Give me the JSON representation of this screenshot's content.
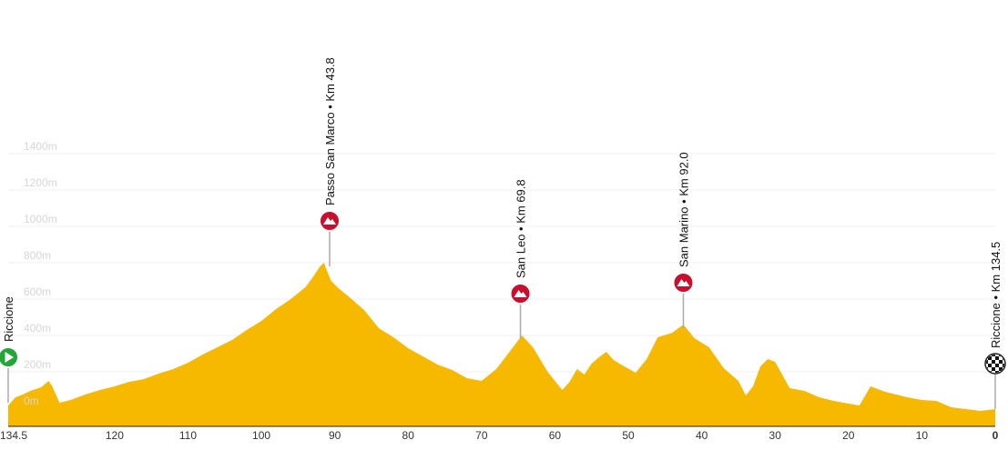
{
  "chart_data": {
    "type": "area",
    "x_reversed": true,
    "xlim": [
      134.5,
      0
    ],
    "ylim": [
      -150,
      1400
    ],
    "grid": true,
    "colors": {
      "fill": "#f6b900",
      "marker_climb": "#c8102e",
      "marker_start": "#23a638",
      "grid": "#efefef",
      "stem": "#aaaaaa"
    },
    "y_ticks": [
      {
        "value": 0,
        "label": "0m"
      },
      {
        "value": 200,
        "label": "200m"
      },
      {
        "value": 400,
        "label": "400m"
      },
      {
        "value": 600,
        "label": "600m"
      },
      {
        "value": 800,
        "label": "800m"
      },
      {
        "value": 1000,
        "label": "1000m"
      },
      {
        "value": 1200,
        "label": "1200m"
      },
      {
        "value": 1400,
        "label": "1400m"
      }
    ],
    "x_ticks": [
      {
        "value": 134.5,
        "label": "134.5",
        "bold": false
      },
      {
        "value": 120,
        "label": "120",
        "bold": false
      },
      {
        "value": 110,
        "label": "110",
        "bold": false
      },
      {
        "value": 100,
        "label": "100",
        "bold": false
      },
      {
        "value": 90,
        "label": "90",
        "bold": false
      },
      {
        "value": 80,
        "label": "80",
        "bold": false
      },
      {
        "value": 70,
        "label": "70",
        "bold": false
      },
      {
        "value": 60,
        "label": "60",
        "bold": false
      },
      {
        "value": 50,
        "label": "50",
        "bold": false
      },
      {
        "value": 40,
        "label": "40",
        "bold": false
      },
      {
        "value": 30,
        "label": "30",
        "bold": false
      },
      {
        "value": 20,
        "label": "20",
        "bold": false
      },
      {
        "value": 10,
        "label": "10",
        "bold": false
      },
      {
        "value": 0,
        "label": "0",
        "bold": true
      }
    ],
    "x": [
      134.5,
      133.5,
      132.5,
      131.5,
      130.0,
      129.0,
      128.5,
      127.5,
      126.0,
      124.0,
      122.0,
      120.0,
      118.0,
      116.0,
      114.0,
      112.0,
      110.0,
      108.0,
      106.0,
      104.0,
      102.0,
      100.0,
      98.0,
      96.0,
      94.0,
      93.0,
      92.0,
      91.5,
      90.5,
      89.5,
      88.0,
      86.0,
      84.0,
      82.0,
      80.0,
      78.0,
      76.0,
      74.0,
      72.0,
      70.0,
      68.0,
      66.0,
      64.5,
      63.0,
      61.0,
      59.0,
      58.0,
      57.0,
      56.0,
      55.0,
      54.0,
      53.0,
      52.0,
      51.0,
      49.0,
      47.5,
      46.0,
      44.0,
      42.5,
      41.0,
      39.0,
      37.0,
      35.0,
      34.0,
      33.0,
      32.0,
      31.0,
      30.0,
      28.0,
      26.0,
      24.0,
      22.0,
      20.0,
      18.5,
      17.0,
      15.0,
      12.0,
      10.0,
      8.0,
      6.0,
      4.0,
      2.0,
      0.0
    ],
    "y": [
      15,
      60,
      75,
      95,
      115,
      150,
      120,
      30,
      45,
      75,
      100,
      120,
      145,
      160,
      190,
      215,
      250,
      295,
      335,
      375,
      430,
      480,
      545,
      600,
      665,
      720,
      780,
      800,
      700,
      660,
      610,
      540,
      440,
      390,
      330,
      285,
      240,
      210,
      165,
      150,
      215,
      320,
      400,
      335,
      200,
      100,
      145,
      215,
      185,
      245,
      280,
      310,
      265,
      240,
      195,
      270,
      390,
      415,
      460,
      385,
      335,
      220,
      150,
      70,
      120,
      230,
      270,
      255,
      110,
      95,
      60,
      40,
      25,
      15,
      120,
      90,
      60,
      45,
      40,
      5,
      -5,
      -15,
      -5
    ],
    "annotations": [
      {
        "x": 134.5,
        "y": 50,
        "label": "Riccione",
        "marker": "start"
      },
      {
        "x": 90.7,
        "y": 800,
        "label": "Passo San Marco • Km 43.8",
        "marker": "climb"
      },
      {
        "x": 64.7,
        "y": 400,
        "label": "San Leo • Km 69.8",
        "marker": "climb"
      },
      {
        "x": 42.5,
        "y": 460,
        "label": "San Marino • Km 92.0",
        "marker": "climb"
      },
      {
        "x": 0,
        "y": 15,
        "label": "Riccione • Km 134.5",
        "marker": "finish"
      }
    ]
  }
}
